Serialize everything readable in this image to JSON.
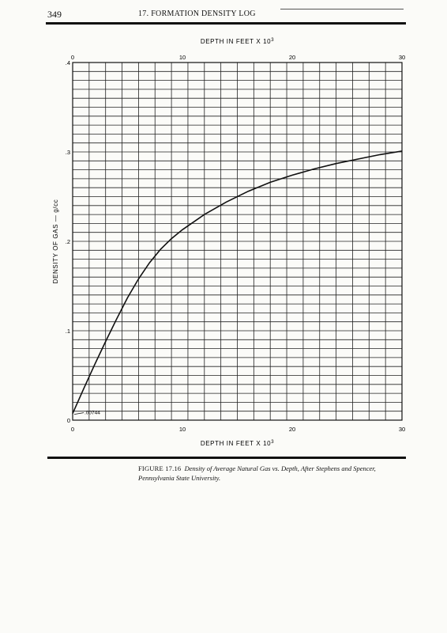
{
  "header": {
    "page_number": "349",
    "running_head": "17. FORMATION DENSITY LOG"
  },
  "caption": {
    "label": "FIGURE 17.16",
    "text": "Density of Average Natural Gas vs. Depth, After Stephens and Spencer, Pennsylvania State University."
  },
  "chart_data": {
    "type": "line",
    "xlabel_top": "DEPTH IN FEET X 10",
    "xlabel_top_exp": "3",
    "xlabel": "DEPTH IN FEET X 10",
    "xlabel_exp": "3",
    "ylabel": "DENSITY OF GAS — g/cc",
    "xlim": [
      0,
      30
    ],
    "ylim": [
      0,
      0.4
    ],
    "x_ticks": [
      0,
      10,
      20,
      30
    ],
    "x_tick_labels": [
      "0",
      "10",
      "20",
      "30"
    ],
    "y_ticks": [
      0,
      0.1,
      0.2,
      0.3,
      0.4
    ],
    "y_tick_labels": [
      "0",
      ".1",
      ".2",
      ".3",
      ".4"
    ],
    "grid": true,
    "annotations": [
      {
        "text": ".00744",
        "x": 0,
        "y": 0.00744
      }
    ],
    "series": [
      {
        "x": [
          0,
          1,
          2,
          3,
          4,
          5,
          6,
          7,
          8,
          9,
          10,
          12,
          14,
          16,
          18,
          20,
          22,
          24,
          26,
          28,
          30
        ],
        "y": [
          0.00744,
          0.035,
          0.062,
          0.088,
          0.113,
          0.137,
          0.158,
          0.176,
          0.191,
          0.203,
          0.213,
          0.23,
          0.244,
          0.256,
          0.266,
          0.274,
          0.281,
          0.287,
          0.292,
          0.297,
          0.301
        ]
      }
    ]
  }
}
